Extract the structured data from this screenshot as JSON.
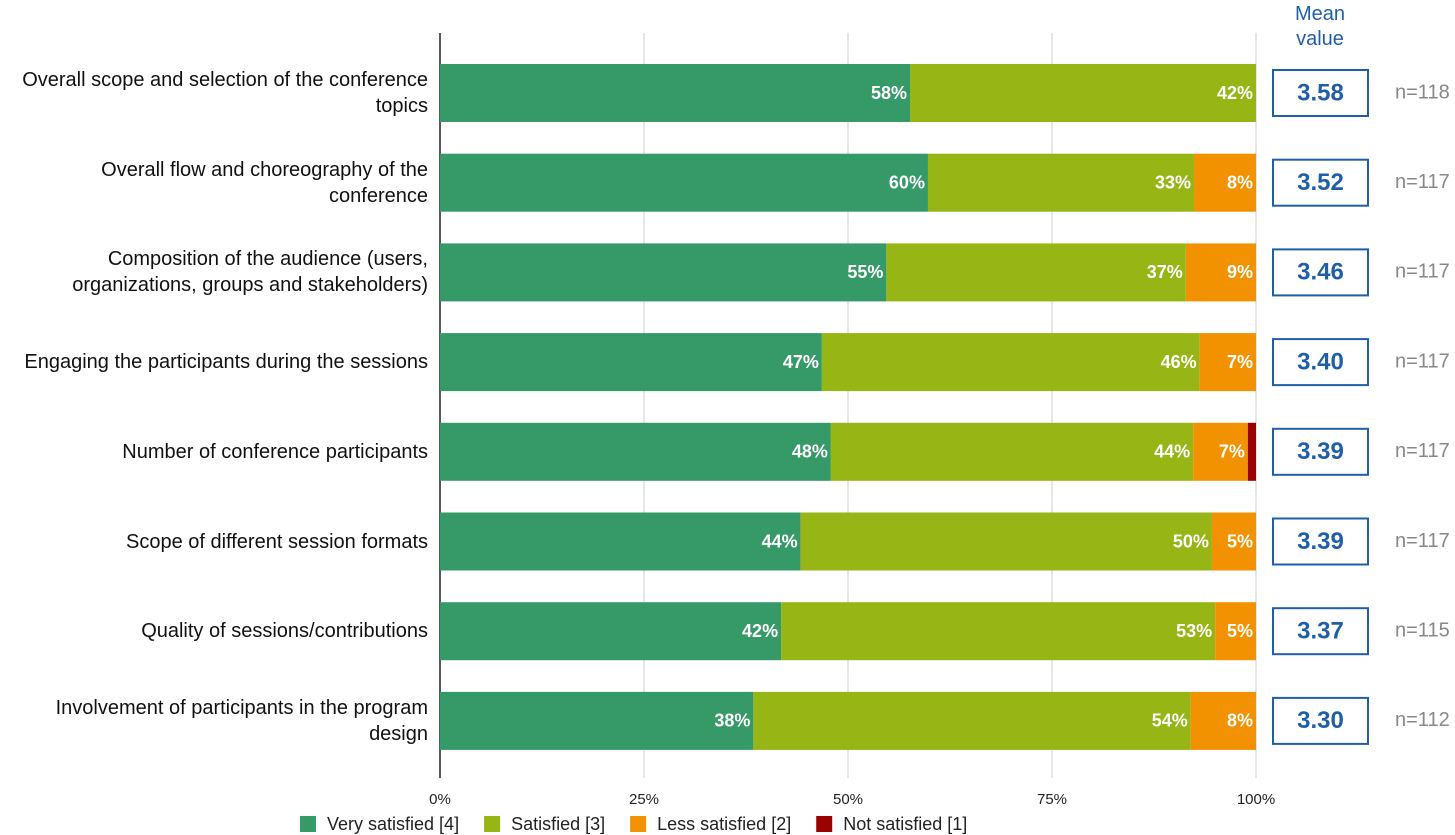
{
  "chart_data": {
    "type": "stacked-barh",
    "categories": [
      "Overall scope and selection of the conference topics",
      "Overall flow and choreography of the conference",
      "Composition of the audience (users, organizations, groups and stakeholders)",
      "Engaging the participants during the sessions",
      "Number of conference participants",
      "Scope of different session formats",
      "Quality of sessions/contributions",
      "Involvement of participants in the program design"
    ],
    "series": [
      {
        "name": "Very satisfied [4]",
        "color": "#359a68",
        "values": [
          57.6,
          59.8,
          54.7,
          46.8,
          47.9,
          44.2,
          41.8,
          38.4
        ],
        "value_labels": [
          "58%",
          "60%",
          "55%",
          "47%",
          "48%",
          "44%",
          "42%",
          "38%"
        ]
      },
      {
        "name": "Satisfied [3]",
        "color": "#97b514",
        "values": [
          42.4,
          32.6,
          36.7,
          46.3,
          44.4,
          50.4,
          53.2,
          53.6
        ],
        "value_labels": [
          "42%",
          "33%",
          "37%",
          "46%",
          "44%",
          "50%",
          "53%",
          "54%"
        ]
      },
      {
        "name": "Less satisfied [2]",
        "color": "#f39200",
        "values": [
          0,
          7.6,
          8.6,
          6.9,
          6.7,
          5.4,
          5.0,
          8.0
        ],
        "value_labels": [
          null,
          "8%",
          "9%",
          "7%",
          "7%",
          "5%",
          "5%",
          "8%"
        ]
      },
      {
        "name": "Not satisfied [1]",
        "color": "#9b0000",
        "values": [
          0,
          0,
          0,
          0,
          1.0,
          0,
          0,
          0
        ],
        "value_labels": [
          null,
          null,
          null,
          null,
          null,
          null,
          null,
          null
        ]
      }
    ],
    "xlim": [
      0,
      100
    ],
    "xticks": [
      {
        "value": 0,
        "label": "0%"
      },
      {
        "value": 25,
        "label": "25%"
      },
      {
        "value": 50,
        "label": "50%"
      },
      {
        "value": 75,
        "label": "75%"
      },
      {
        "value": 100,
        "label": "100%"
      }
    ],
    "grid": true,
    "legend": "bottom",
    "mean": {
      "title": "Mean value",
      "values": [
        3.58,
        3.52,
        3.46,
        3.4,
        3.39,
        3.39,
        3.37,
        3.3
      ],
      "value_labels": [
        "3.58",
        "3.52",
        "3.46",
        "3.40",
        "3.39",
        "3.39",
        "3.37",
        "3.30"
      ]
    },
    "n": {
      "values": [
        118,
        117,
        117,
        117,
        117,
        117,
        115,
        112
      ],
      "value_labels": [
        "n=118",
        "n=117",
        "n=117",
        "n=117",
        "n=117",
        "n=117",
        "n=115",
        "n=112"
      ]
    }
  }
}
